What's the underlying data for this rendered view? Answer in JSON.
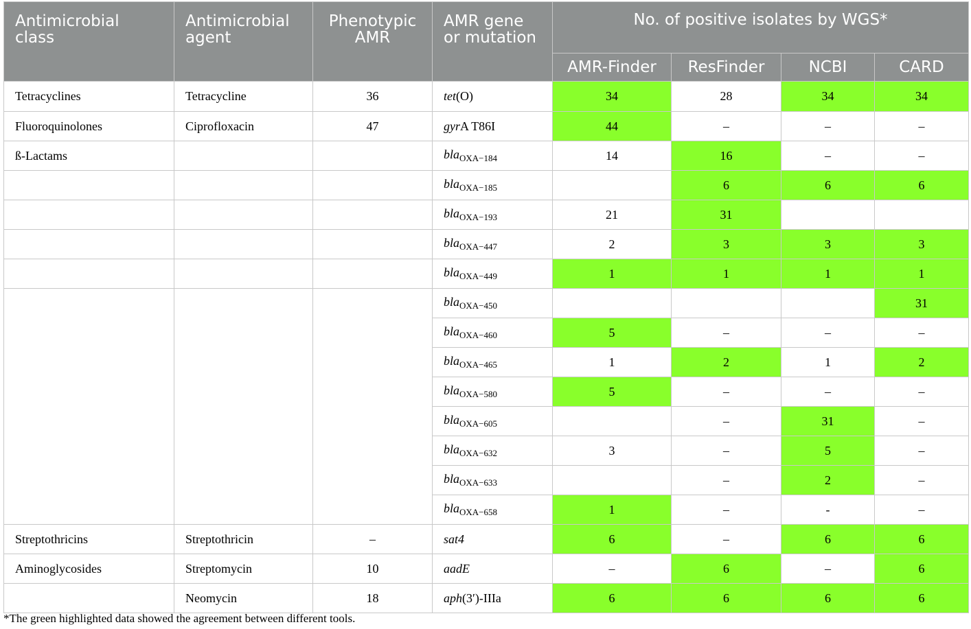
{
  "header": {
    "col_class": "Antimicrobial class",
    "col_agent": "Antimicrobial agent",
    "col_pheno": "Phenotypic AMR",
    "col_gene": "AMR gene or mutation",
    "col_group": "No. of positive isolates by WGS*",
    "tools": [
      "AMR-Finder",
      "ResFinder",
      "NCBI",
      "CARD"
    ]
  },
  "rows": [
    {
      "cls": "Tetracyclines",
      "agent": "Tetracycline",
      "pheno": "36",
      "gene": "tet",
      "gene_suffix": "(O)",
      "sub": "",
      "v": [
        "34",
        "28",
        "34",
        "34"
      ],
      "hl": [
        true,
        false,
        true,
        true
      ]
    },
    {
      "cls": "Fluoroquinolones",
      "agent": "Ciprofloxacin",
      "pheno": "47",
      "gene": "gyr",
      "gene_suffix": "A T86I",
      "sub": "",
      "v": [
        "44",
        "–",
        "–",
        "–"
      ],
      "hl": [
        true,
        false,
        false,
        false
      ]
    },
    {
      "cls": "ß-Lactams",
      "agent": "",
      "pheno": "",
      "gene": "bla",
      "gene_suffix": "",
      "sub": "OXA−184",
      "v": [
        "14",
        "16",
        "–",
        "–"
      ],
      "hl": [
        false,
        true,
        false,
        false
      ]
    },
    {
      "cls": "",
      "agent": "",
      "pheno": "",
      "gene": "bla",
      "gene_suffix": "",
      "sub": "OXA−185",
      "v": [
        "",
        "6",
        "6",
        "6"
      ],
      "hl": [
        false,
        true,
        true,
        true
      ]
    },
    {
      "cls": "",
      "agent": "",
      "pheno": "",
      "gene": "bla",
      "gene_suffix": "",
      "sub": "OXA−193",
      "v": [
        "21",
        "31",
        "",
        ""
      ],
      "hl": [
        false,
        true,
        false,
        false
      ]
    },
    {
      "cls": "",
      "agent": "",
      "pheno": "",
      "gene": "bla",
      "gene_suffix": "",
      "sub": "OXA−447",
      "v": [
        "2",
        "3",
        "3",
        "3"
      ],
      "hl": [
        false,
        true,
        true,
        true
      ]
    },
    {
      "cls": "",
      "agent": "",
      "pheno": "",
      "gene": "bla",
      "gene_suffix": "",
      "sub": "OXA−449",
      "v": [
        "1",
        "1",
        "1",
        "1"
      ],
      "hl": [
        true,
        true,
        true,
        true
      ]
    },
    {
      "cls": "",
      "agent": "",
      "pheno": "",
      "gene": "bla",
      "gene_suffix": "",
      "sub": "OXA−450",
      "v": [
        "",
        "",
        "",
        "31"
      ],
      "hl": [
        false,
        false,
        false,
        true
      ],
      "span": 8
    },
    {
      "gene": "bla",
      "gene_suffix": "",
      "sub": "OXA−460",
      "v": [
        "5",
        "–",
        "–",
        "–"
      ],
      "hl": [
        true,
        false,
        false,
        false
      ]
    },
    {
      "gene": "bla",
      "gene_suffix": "",
      "sub": "OXA−465",
      "v": [
        "1",
        "2",
        "1",
        "2"
      ],
      "hl": [
        false,
        true,
        false,
        true
      ]
    },
    {
      "gene": "bla",
      "gene_suffix": "",
      "sub": "OXA−580",
      "v": [
        "5",
        "–",
        "–",
        "–"
      ],
      "hl": [
        true,
        false,
        false,
        false
      ]
    },
    {
      "gene": "bla",
      "gene_suffix": "",
      "sub": "OXA−605",
      "v": [
        "",
        "–",
        "31",
        "–"
      ],
      "hl": [
        false,
        false,
        true,
        false
      ]
    },
    {
      "gene": "bla",
      "gene_suffix": "",
      "sub": "OXA−632",
      "v": [
        "3",
        "–",
        "5",
        "–"
      ],
      "hl": [
        false,
        false,
        true,
        false
      ]
    },
    {
      "gene": "bla",
      "gene_suffix": "",
      "sub": "OXA−633",
      "v": [
        "",
        "–",
        "2",
        "–"
      ],
      "hl": [
        false,
        false,
        true,
        false
      ]
    },
    {
      "gene": "bla",
      "gene_suffix": "",
      "sub": "OXA−658",
      "v": [
        "1",
        "–",
        "-",
        "–"
      ],
      "hl": [
        true,
        false,
        false,
        false
      ]
    },
    {
      "cls": "Streptothricins",
      "agent": "Streptothricin",
      "pheno": "–",
      "gene": "sat4",
      "gene_suffix": "",
      "sub": "",
      "v": [
        "6",
        "–",
        "6",
        "6"
      ],
      "hl": [
        true,
        false,
        true,
        true
      ]
    },
    {
      "cls": "Aminoglycosides",
      "agent": "Streptomycin",
      "pheno": "10",
      "gene": "aadE",
      "gene_suffix": "",
      "sub": "",
      "v": [
        "–",
        "6",
        "–",
        "6"
      ],
      "hl": [
        false,
        true,
        false,
        true
      ]
    },
    {
      "cls": "",
      "agent": "Neomycin",
      "pheno": "18",
      "gene": "aph",
      "gene_suffix": "(3′)-IIIa",
      "sub": "",
      "v": [
        "6",
        "6",
        "6",
        "6"
      ],
      "hl": [
        true,
        true,
        true,
        true
      ]
    }
  ],
  "footnote": "*The green highlighted data showed the agreement between different tools.",
  "colors": {
    "header_bg": "#8e9191",
    "highlight": "#89ff2b",
    "grid": "#c8c8c8"
  }
}
